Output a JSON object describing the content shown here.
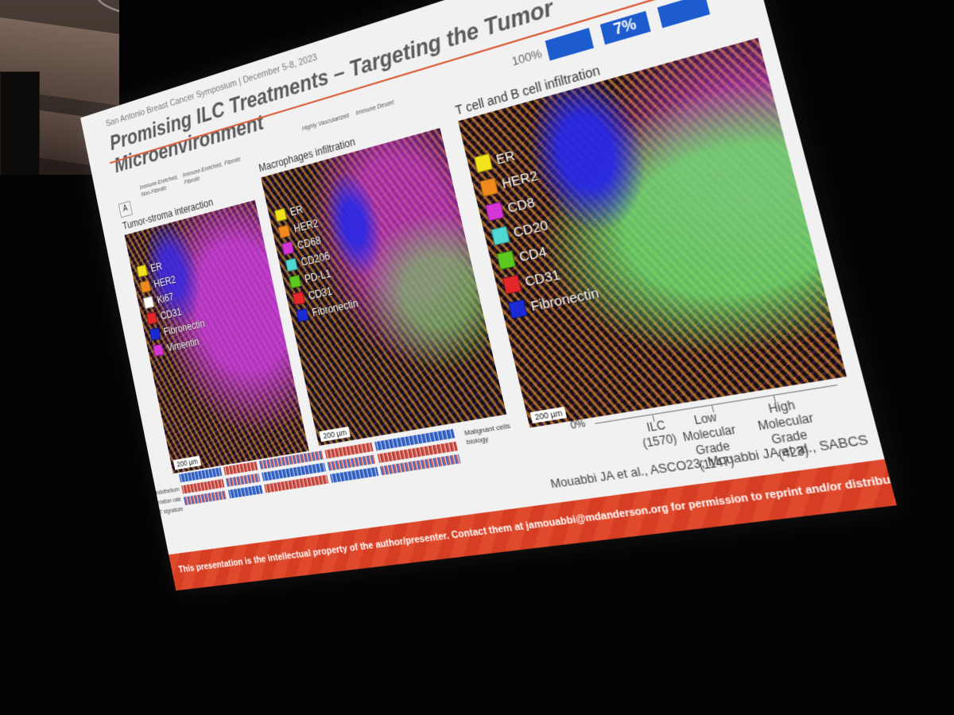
{
  "slide": {
    "conference": "San Antonio Breast Cancer Symposium | December 5-8, 2023",
    "title": "Promising ILC Treatments – Targeting the Tumor Microenvironment",
    "top_percent_label": "100%",
    "top_box_label": "7%"
  },
  "subtypes": {
    "immune_enriched_nonfibrotic": "Immune-Enriched, Non-Fibrotic",
    "immune_enriched_fibrotic": "Immune-Enriched, Fibrotic",
    "fibrotic": "Fibrotic",
    "highly_vascularized": "Highly Vascularized",
    "immune_desert": "Immune Desert"
  },
  "panel_marker": "A",
  "panels": [
    {
      "title": "Tumor-stroma interaction",
      "scale": "200 µm",
      "legend": [
        {
          "label": "ER",
          "color": "#f1e21c"
        },
        {
          "label": "HER2",
          "color": "#f08a1e"
        },
        {
          "label": "Ki67",
          "color": "#ffffff"
        },
        {
          "label": "CD31",
          "color": "#e5262a"
        },
        {
          "label": "Fibronectin",
          "color": "#1a2bd6"
        },
        {
          "label": "Vimentin",
          "color": "#d535d6"
        }
      ]
    },
    {
      "title": "Macrophages infiltration",
      "scale": "200 µm",
      "legend": [
        {
          "label": "ER",
          "color": "#f1e21c"
        },
        {
          "label": "HER2",
          "color": "#f08a1e"
        },
        {
          "label": "CD68",
          "color": "#d535d6"
        },
        {
          "label": "CD206",
          "color": "#4fd9d2"
        },
        {
          "label": "PD-L1",
          "color": "#5cc91e"
        },
        {
          "label": "CD31",
          "color": "#e5262a"
        },
        {
          "label": "Fibronectin",
          "color": "#1a2bd6"
        }
      ]
    },
    {
      "title": "T cell and B cell infiltration",
      "scale": "200 µm",
      "legend": [
        {
          "label": "ER",
          "color": "#f1e21c"
        },
        {
          "label": "HER2",
          "color": "#f08a1e"
        },
        {
          "label": "CD8",
          "color": "#d535d6"
        },
        {
          "label": "CD20",
          "color": "#4fd9d2"
        },
        {
          "label": "CD4",
          "color": "#5cc91e"
        },
        {
          "label": "CD31",
          "color": "#e5262a"
        },
        {
          "label": "Fibronectin",
          "color": "#1a2bd6"
        }
      ]
    }
  ],
  "heatmap": {
    "row_labels": [
      "Endothelium",
      "Proliferation rate",
      "EMT signature"
    ],
    "side_label": "Malignant cells biology"
  },
  "bar_chart": {
    "axis_zero": "0%",
    "categories": [
      {
        "name": "ILC",
        "n": "(1570)"
      },
      {
        "name": "Low Molecular Grade",
        "n": "(1147)"
      },
      {
        "name": "High Molecular Grade",
        "n": "(423)"
      }
    ]
  },
  "citation": "Mouabbi JA et al., ASCO23; Mouabbi JA et al., SABCS",
  "footer": "This presentation is the intellectual property of the author/presenter. Contact them at jamouabbi@mdanderson.org for permission to reprint and/or distribute"
}
